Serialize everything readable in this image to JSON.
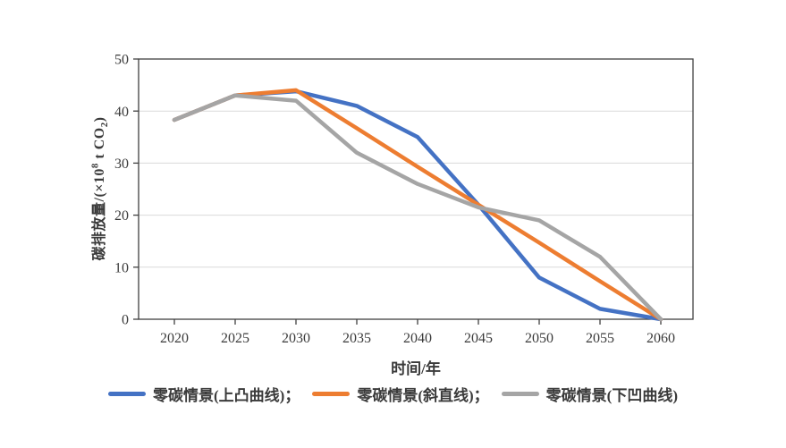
{
  "chart_data": {
    "type": "line",
    "title": "",
    "xlabel": "时间/年",
    "ylabel": "碳排放量/(×10⁸ t CO₂)",
    "ylabel_parts": {
      "prefix": "碳排放量/(×10",
      "sup": "8",
      "mid": " t CO",
      "sub": "2",
      "suffix": ")"
    },
    "categories": [
      "2020",
      "2025",
      "2030",
      "2035",
      "2040",
      "2045",
      "2050",
      "2055",
      "2060"
    ],
    "y_ticks": [
      "0",
      "10",
      "20",
      "30",
      "40",
      "50"
    ],
    "ylim": [
      0,
      50
    ],
    "grid": "horizontal",
    "legend_position": "bottom",
    "series": [
      {
        "name": "零碳情景(上凸曲线)",
        "legend_label": "零碳情景(上凸曲线)；",
        "color": "#4472C4",
        "values": [
          38.3,
          43,
          43.8,
          41,
          35,
          22,
          8,
          2,
          0
        ]
      },
      {
        "name": "零碳情景(斜直线)",
        "legend_label": "零碳情景(斜直线)；",
        "color": "#ED7D31",
        "values": [
          38.3,
          43,
          44,
          36.7,
          29.3,
          22,
          14.7,
          7.3,
          0
        ]
      },
      {
        "name": "零碳情景(下凹曲线)",
        "legend_label": "零碳情景(下凹曲线)",
        "color": "#A5A5A5",
        "values": [
          38.3,
          43,
          42,
          32,
          26,
          21.5,
          19,
          12,
          0
        ]
      }
    ],
    "colors": {
      "axis": "#404040",
      "gridline": "#d9d9d9",
      "tick_label": "#3a3a3a"
    }
  }
}
